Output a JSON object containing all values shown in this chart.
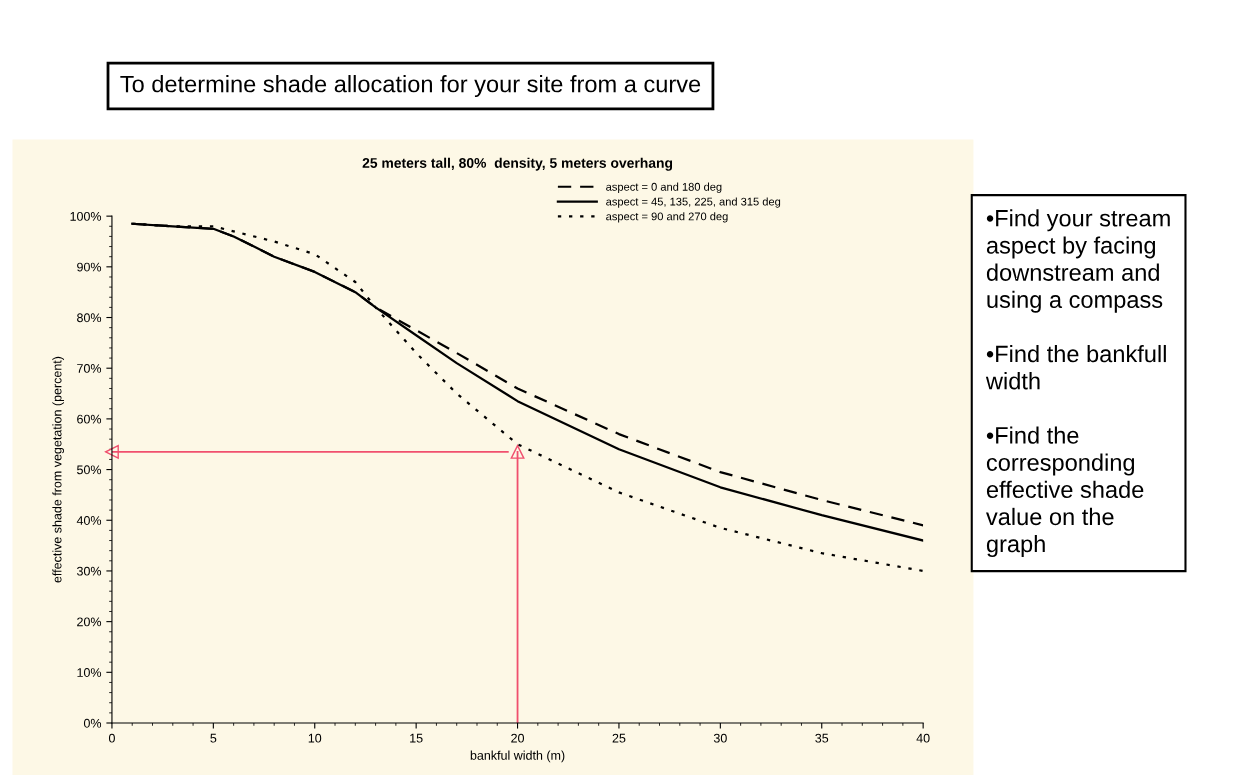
{
  "chart_data": {
    "type": "line",
    "title": "25 meters tall, 80%  density, 5 meters overhang",
    "xlabel": "bankful width (m)",
    "ylabel": "effective shade from vegetation (percent)",
    "x": [
      1,
      3,
      5,
      6,
      8,
      10,
      12,
      13,
      15,
      17,
      20,
      25,
      30,
      35,
      40
    ],
    "series": [
      {
        "name": "aspect = 0 and 180 deg",
        "color": "#000000",
        "line_style": "dashed",
        "values": [
          98.5,
          98,
          97.5,
          96,
          92,
          89,
          85,
          82,
          77.5,
          73,
          66,
          57,
          49.5,
          44,
          39
        ]
      },
      {
        "name": "aspect = 45, 135, 225, and 315 deg",
        "color": "#000000",
        "line_style": "solid",
        "values": [
          98.5,
          98,
          97.5,
          96,
          92,
          89,
          85,
          82,
          76.5,
          71,
          63.5,
          54,
          46.5,
          41,
          36
        ]
      },
      {
        "name": "aspect = 90 and 270 deg",
        "color": "#000000",
        "line_style": "dotted",
        "values": [
          98.5,
          98,
          98,
          97,
          95,
          92.5,
          87,
          82,
          73,
          65,
          55,
          45.5,
          38.5,
          33.5,
          30
        ]
      }
    ],
    "xlim": [
      0,
      40
    ],
    "xticks": [
      0,
      5,
      10,
      15,
      20,
      25,
      30,
      35,
      40
    ],
    "ylim": [
      0,
      100
    ],
    "yticks": [
      {
        "value": 0,
        "label": "0%"
      },
      {
        "value": 10,
        "label": "10%"
      },
      {
        "value": 20,
        "label": "20%"
      },
      {
        "value": 30,
        "label": "30%"
      },
      {
        "value": 40,
        "label": "40%"
      },
      {
        "value": 50,
        "label": "50%"
      },
      {
        "value": 60,
        "label": "60%"
      },
      {
        "value": 70,
        "label": "70%"
      },
      {
        "value": 80,
        "label": "80%"
      },
      {
        "value": 90,
        "label": "90%"
      },
      {
        "value": 100,
        "label": "100%"
      }
    ],
    "grid": false,
    "legend": "top right",
    "marker": "none",
    "annotations": [
      "To determine shade allocation for your site from a curve",
      "•Find your stream\naspect by facing\ndownstream and\nusing a compass\n\n•Find the bankfull\nwidth\n\n•Find the\ncorresponding\neffective shade\nvalue on the\ngraph"
    ],
    "ref_lines": [
      {
        "axis": "x",
        "value": 20,
        "color": "#f0506e"
      },
      {
        "axis": "y",
        "value": 53.5,
        "color": "#f0506e"
      }
    ]
  }
}
